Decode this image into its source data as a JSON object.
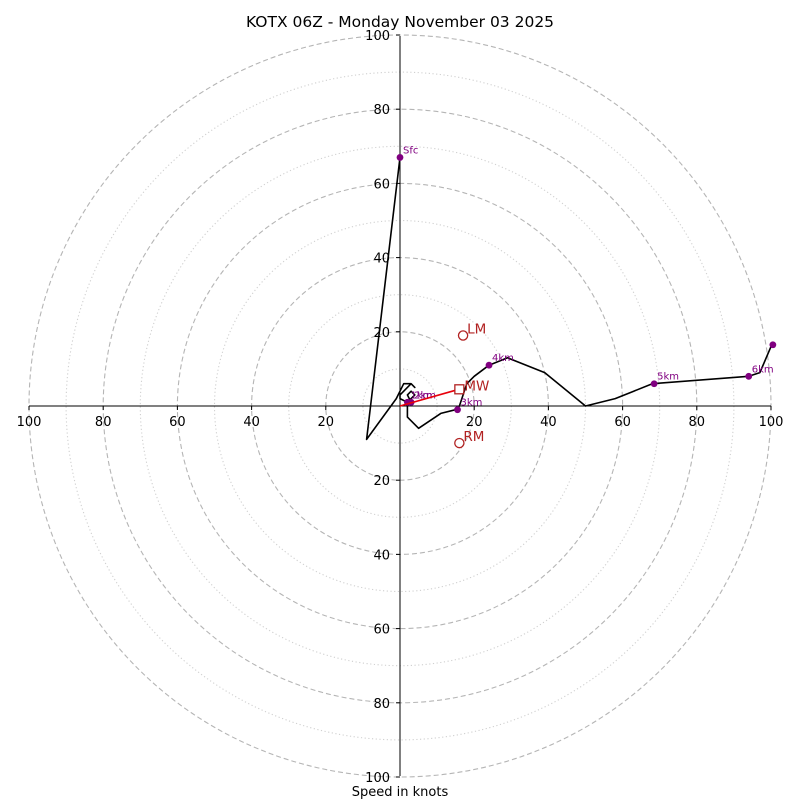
{
  "chart_data": {
    "type": "hodograph",
    "title": "KOTX 06Z - Monday November 03 2025",
    "xlabel": "Speed in knots",
    "units": "knots",
    "range": [
      -100,
      100
    ],
    "ring_values": [
      10,
      20,
      30,
      40,
      50,
      60,
      70,
      80,
      90,
      100
    ],
    "ring_labels": [
      "20",
      "40",
      "60",
      "80",
      "100"
    ],
    "x_tick_labels": [
      {
        "value": -100,
        "label": "100"
      },
      {
        "value": -80,
        "label": "80"
      },
      {
        "value": -60,
        "label": "60"
      },
      {
        "value": -40,
        "label": "40"
      },
      {
        "value": -20,
        "label": "20"
      },
      {
        "value": 20,
        "label": "20"
      },
      {
        "value": 40,
        "label": "40"
      },
      {
        "value": 60,
        "label": "60"
      },
      {
        "value": 80,
        "label": "80"
      },
      {
        "value": 100,
        "label": "100"
      }
    ],
    "y_tick_labels": [
      {
        "value": 100,
        "label": "100"
      },
      {
        "value": 80,
        "label": "80"
      },
      {
        "value": 60,
        "label": "60"
      },
      {
        "value": 40,
        "label": "40"
      },
      {
        "value": 20,
        "label": "20"
      },
      {
        "value": -20,
        "label": "20"
      },
      {
        "value": -40,
        "label": "40"
      },
      {
        "value": -60,
        "label": "60"
      },
      {
        "value": -80,
        "label": "80"
      },
      {
        "value": -100,
        "label": "100"
      }
    ],
    "grid": "dashed rings every 20 kt, dotted rings between",
    "hodograph_trace": [
      {
        "u": 0,
        "v": 67
      },
      {
        "u": -9,
        "v": -9
      },
      {
        "u": -1,
        "v": 2
      },
      {
        "u": 1,
        "v": 6
      },
      {
        "u": 3,
        "v": 6
      },
      {
        "u": 4,
        "v": 5
      },
      {
        "u": 3,
        "v": 6
      },
      {
        "u": 2,
        "v": 5
      },
      {
        "u": 0,
        "v": 3
      },
      {
        "u": 0,
        "v": 2
      },
      {
        "u": 2,
        "v": 1
      },
      {
        "u": 3,
        "v": 2
      },
      {
        "u": 4,
        "v": 3
      },
      {
        "u": 3,
        "v": 4
      },
      {
        "u": 2,
        "v": 3
      },
      {
        "u": 3,
        "v": 1
      },
      {
        "u": 2,
        "v": 1
      },
      {
        "u": 2,
        "v": 0
      },
      {
        "u": 2,
        "v": -3
      },
      {
        "u": 5,
        "v": -6
      },
      {
        "u": 11,
        "v": -2
      },
      {
        "u": 15,
        "v": -1
      },
      {
        "u": 16,
        "v": 0
      },
      {
        "u": 17,
        "v": 3
      },
      {
        "u": 18,
        "v": 6
      },
      {
        "u": 20,
        "v": 8
      },
      {
        "u": 24,
        "v": 11
      },
      {
        "u": 29,
        "v": 13
      },
      {
        "u": 39,
        "v": 9
      },
      {
        "u": 50,
        "v": 0
      },
      {
        "u": 58,
        "v": 2
      },
      {
        "u": 63,
        "v": 4
      },
      {
        "u": 68,
        "v": 6
      },
      {
        "u": 94,
        "v": 8
      },
      {
        "u": 97,
        "v": 9
      },
      {
        "u": 100,
        "v": 16
      }
    ],
    "height_markers": [
      {
        "label": "Sfc",
        "u": 0,
        "v": 67
      },
      {
        "label": "1km",
        "u": 2,
        "v": 1
      },
      {
        "label": "2km",
        "u": 3,
        "v": 1
      },
      {
        "label": "3km",
        "u": 15.5,
        "v": -1
      },
      {
        "label": "4km",
        "u": 24,
        "v": 11
      },
      {
        "label": "5km",
        "u": 68.5,
        "v": 6
      },
      {
        "label": "6km",
        "u": 94,
        "v": 8
      },
      {
        "label": "",
        "u": 100.5,
        "v": 16.5
      }
    ],
    "mean_wind": {
      "label": "MW",
      "u": 16,
      "v": 4.5
    },
    "left_mover": {
      "label": "LM",
      "u": 17,
      "v": 19
    },
    "right_mover": {
      "label": "RM",
      "u": 16,
      "v": -10
    },
    "colors": {
      "trace": "#000000",
      "markers": "#800080",
      "motion": "#b22222",
      "mean_wind_vector": "#e8000b",
      "grid": "#b0b0b0"
    }
  }
}
